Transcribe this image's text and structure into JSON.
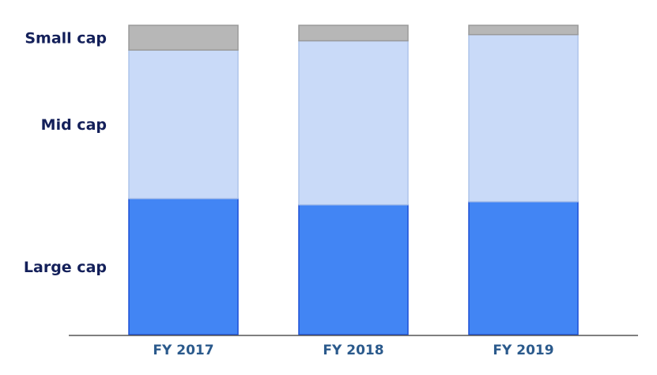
{
  "chart_data": {
    "type": "bar",
    "stacked": true,
    "normalized": true,
    "categories": [
      "FY 2017",
      "FY 2018",
      "FY 2019"
    ],
    "series": [
      {
        "name": "Large cap",
        "values": [
          44,
          42,
          43
        ],
        "color": "#4285f4",
        "stroke": "#1a4fd6"
      },
      {
        "name": "Mid cap",
        "values": [
          48,
          53,
          54
        ],
        "color": "#c9daf8",
        "stroke": "#aec4ea"
      },
      {
        "name": "Small cap",
        "values": [
          8,
          5,
          3
        ],
        "color": "#b7b7b7",
        "stroke": "#9a9a9a"
      }
    ],
    "ylim": [
      0,
      100
    ],
    "grid": false,
    "legend": "left"
  }
}
